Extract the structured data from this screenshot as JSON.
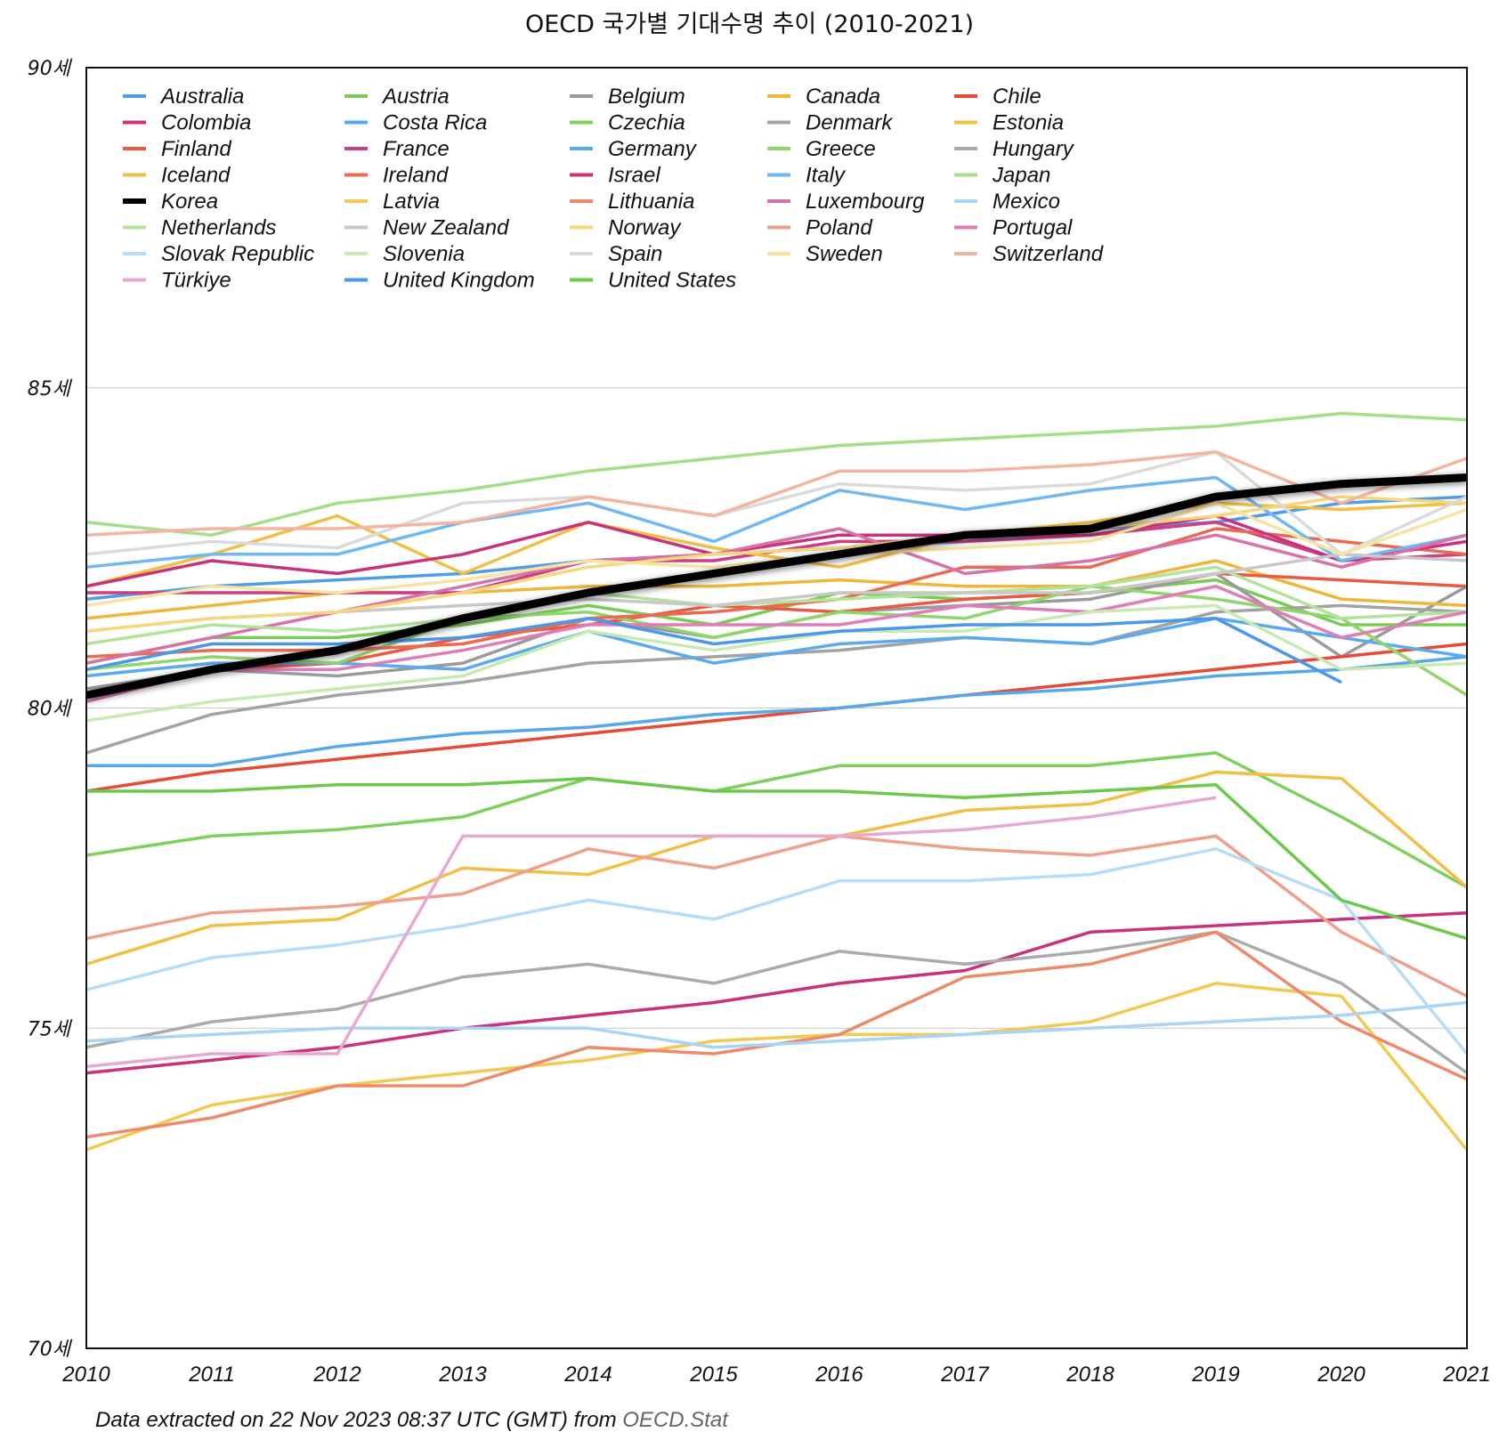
{
  "chart_data": {
    "type": "line",
    "title": "OECD 국가별 기대수명 추이 (2010-2021)",
    "xlabel": "",
    "ylabel": "",
    "ylim": [
      70,
      90
    ],
    "y_ticks": [
      {
        "value": 70,
        "label": "70세"
      },
      {
        "value": 75,
        "label": "75세"
      },
      {
        "value": 80,
        "label": "80세"
      },
      {
        "value": 85,
        "label": "85세"
      },
      {
        "value": 90,
        "label": "90세"
      }
    ],
    "x": [
      "2010",
      "2011",
      "2012",
      "2013",
      "2014",
      "2015",
      "2016",
      "2017",
      "2018",
      "2019",
      "2020",
      "2021"
    ],
    "grid": true,
    "legend_position": "top-left",
    "series": [
      {
        "name": "Australia",
        "color": "#4e9de8",
        "values": [
          81.7,
          81.9,
          82.0,
          82.1,
          82.3,
          82.4,
          82.5,
          82.6,
          82.8,
          82.9,
          83.2,
          83.3
        ]
      },
      {
        "name": "Austria",
        "color": "#79cb55",
        "values": [
          80.7,
          81.1,
          81.1,
          81.3,
          81.6,
          81.3,
          81.8,
          81.7,
          81.8,
          82.0,
          81.3,
          81.3
        ]
      },
      {
        "name": "Belgium",
        "color": "#9a9a9a",
        "values": [
          80.3,
          80.6,
          80.5,
          80.7,
          81.4,
          81.1,
          81.5,
          81.6,
          81.7,
          82.1,
          80.8,
          81.9
        ]
      },
      {
        "name": "Canada",
        "color": "#efb63a",
        "values": [
          81.4,
          81.6,
          81.8,
          81.8,
          81.9,
          81.9,
          82.0,
          81.9,
          81.9,
          82.3,
          81.7,
          81.6
        ]
      },
      {
        "name": "Chile",
        "color": "#e54b35",
        "values": [
          78.7,
          79.0,
          79.2,
          79.4,
          79.6,
          79.8,
          80.0,
          80.2,
          80.4,
          80.6,
          80.8,
          81.0
        ]
      },
      {
        "name": "Colombia",
        "color": "#c9327a",
        "values": [
          74.3,
          74.5,
          74.7,
          75.0,
          75.2,
          75.4,
          75.7,
          75.9,
          76.5,
          76.6,
          76.7,
          76.8
        ]
      },
      {
        "name": "Costa Rica",
        "color": "#56a8ea",
        "values": [
          79.1,
          79.1,
          79.4,
          79.6,
          79.7,
          79.9,
          80.0,
          80.2,
          80.3,
          80.5,
          80.6,
          80.8
        ]
      },
      {
        "name": "Czechia",
        "color": "#7fcf5f",
        "values": [
          77.7,
          78.0,
          78.1,
          78.3,
          78.9,
          78.7,
          79.1,
          79.1,
          79.1,
          79.3,
          78.3,
          77.2
        ]
      },
      {
        "name": "Denmark",
        "color": "#a3a3a3",
        "values": [
          79.3,
          79.9,
          80.2,
          80.4,
          80.7,
          80.8,
          80.9,
          81.1,
          81.0,
          81.5,
          81.6,
          81.5
        ]
      },
      {
        "name": "Estonia",
        "color": "#f0bf45",
        "values": [
          76.0,
          76.6,
          76.7,
          77.5,
          77.4,
          78.0,
          78.0,
          78.4,
          78.5,
          79.0,
          78.9,
          77.2
        ]
      },
      {
        "name": "Finland",
        "color": "#ea5a40",
        "values": [
          80.2,
          80.6,
          80.7,
          81.1,
          81.3,
          81.6,
          81.5,
          81.7,
          81.8,
          82.1,
          82.0,
          81.9
        ]
      },
      {
        "name": "France",
        "color": "#cc3f83",
        "values": [
          81.8,
          81.8,
          81.8,
          81.8,
          82.3,
          82.3,
          82.6,
          82.6,
          82.7,
          82.9,
          82.3,
          82.4
        ]
      },
      {
        "name": "Germany",
        "color": "#5aaaf0",
        "values": [
          80.5,
          80.7,
          80.7,
          80.6,
          81.2,
          80.7,
          81.0,
          81.1,
          81.0,
          81.4,
          81.1,
          80.8
        ]
      },
      {
        "name": "Greece",
        "color": "#8fd66c",
        "values": [
          80.6,
          80.8,
          80.7,
          81.4,
          81.5,
          81.1,
          81.5,
          81.4,
          81.9,
          81.7,
          81.4,
          80.2
        ]
      },
      {
        "name": "Hungary",
        "color": "#ababab",
        "values": [
          74.7,
          75.1,
          75.3,
          75.8,
          76.0,
          75.7,
          76.2,
          76.0,
          76.2,
          76.5,
          75.7,
          74.3
        ]
      },
      {
        "name": "Iceland",
        "color": "#f0bf45",
        "values": [
          81.9,
          82.4,
          83.0,
          82.1,
          82.9,
          82.5,
          82.2,
          82.7,
          82.9,
          83.2,
          83.1,
          83.2
        ]
      },
      {
        "name": "Ireland",
        "color": "#ea6a50",
        "values": [
          80.8,
          80.9,
          80.9,
          81.0,
          81.4,
          81.5,
          81.7,
          82.2,
          82.2,
          82.8,
          82.6,
          82.4
        ]
      },
      {
        "name": "Israel",
        "color": "#c9327a",
        "values": [
          81.9,
          82.3,
          82.1,
          82.4,
          82.9,
          82.4,
          82.7,
          82.7,
          82.7,
          83.0,
          82.3,
          82.6
        ]
      },
      {
        "name": "Italy",
        "color": "#6fb8f2",
        "values": [
          82.2,
          82.4,
          82.4,
          82.9,
          83.2,
          82.6,
          83.4,
          83.1,
          83.4,
          83.6,
          82.3,
          82.7
        ]
      },
      {
        "name": "Japan",
        "color": "#a5de88",
        "values": [
          82.9,
          82.7,
          83.2,
          83.4,
          83.7,
          83.9,
          84.1,
          84.2,
          84.3,
          84.4,
          84.6,
          84.5
        ]
      },
      {
        "name": "Korea",
        "color": "#000000",
        "emphasis": true,
        "values": [
          80.2,
          80.6,
          80.9,
          81.4,
          81.8,
          82.1,
          82.4,
          82.7,
          82.8,
          83.3,
          83.5,
          83.6
        ]
      },
      {
        "name": "Latvia",
        "color": "#f2c952",
        "values": [
          73.1,
          73.8,
          74.1,
          74.3,
          74.5,
          74.8,
          74.9,
          74.9,
          75.1,
          75.7,
          75.5,
          73.1
        ]
      },
      {
        "name": "Lithuania",
        "color": "#ec8a6a",
        "values": [
          73.3,
          73.6,
          74.1,
          74.1,
          74.7,
          74.6,
          74.9,
          75.8,
          76.0,
          76.5,
          75.1,
          74.2
        ]
      },
      {
        "name": "Luxembourg",
        "color": "#d871a8",
        "values": [
          80.7,
          81.1,
          81.5,
          81.9,
          82.3,
          82.4,
          82.8,
          82.1,
          82.3,
          82.7,
          82.2,
          82.7
        ]
      },
      {
        "name": "Mexico",
        "color": "#a8d4f6",
        "values": [
          74.8,
          74.9,
          75.0,
          75.0,
          75.0,
          74.7,
          74.8,
          74.9,
          75.0,
          75.1,
          75.2,
          75.4
        ]
      },
      {
        "name": "Netherlands",
        "color": "#b2e39a",
        "values": [
          81.0,
          81.3,
          81.2,
          81.4,
          81.8,
          81.6,
          81.7,
          81.8,
          81.9,
          82.2,
          81.4,
          81.5
        ]
      },
      {
        "name": "New Zealand",
        "color": "#c8c8c8",
        "values": [
          81.2,
          81.4,
          81.5,
          81.6,
          81.7,
          81.6,
          81.8,
          81.8,
          81.8,
          82.1,
          82.4,
          82.3
        ]
      },
      {
        "name": "Norway",
        "color": "#f6d77c",
        "values": [
          81.2,
          81.4,
          81.5,
          81.8,
          82.2,
          82.4,
          82.5,
          82.7,
          82.8,
          83.0,
          83.3,
          83.2
        ]
      },
      {
        "name": "Poland",
        "color": "#eea08a",
        "values": [
          76.4,
          76.8,
          76.9,
          77.1,
          77.8,
          77.5,
          78.0,
          77.8,
          77.7,
          78.0,
          76.5,
          75.5
        ]
      },
      {
        "name": "Portugal",
        "color": "#e07cb8",
        "values": [
          80.1,
          80.6,
          80.6,
          80.9,
          81.3,
          81.3,
          81.3,
          81.6,
          81.5,
          81.9,
          81.1,
          81.5
        ]
      },
      {
        "name": "Slovak Republic",
        "color": "#b6dcf8",
        "values": [
          75.6,
          76.1,
          76.3,
          76.6,
          77.0,
          76.7,
          77.3,
          77.3,
          77.4,
          77.8,
          77.0,
          74.6
        ]
      },
      {
        "name": "Slovenia",
        "color": "#c6eab2",
        "values": [
          79.8,
          80.1,
          80.3,
          80.5,
          81.2,
          80.9,
          81.2,
          81.2,
          81.5,
          81.6,
          80.6,
          80.7
        ]
      },
      {
        "name": "Spain",
        "color": "#dadada",
        "values": [
          82.4,
          82.6,
          82.5,
          83.2,
          83.3,
          83.0,
          83.5,
          83.4,
          83.5,
          84.0,
          82.4,
          83.3
        ]
      },
      {
        "name": "Sweden",
        "color": "#f8e3a0",
        "values": [
          81.6,
          81.9,
          81.8,
          82.0,
          82.3,
          82.2,
          82.4,
          82.5,
          82.6,
          83.2,
          82.4,
          83.1
        ]
      },
      {
        "name": "Switzerland",
        "color": "#f4b4a2",
        "values": [
          82.7,
          82.8,
          82.8,
          82.9,
          83.3,
          83.0,
          83.7,
          83.7,
          83.8,
          84.0,
          83.2,
          83.9
        ]
      },
      {
        "name": "Türkiye",
        "color": "#e6a8d2",
        "values": [
          74.4,
          74.6,
          74.6,
          78.0,
          78.0,
          78.0,
          78.0,
          78.1,
          78.3,
          78.6,
          null,
          null
        ]
      },
      {
        "name": "United Kingdom",
        "color": "#4a98ea",
        "values": [
          80.6,
          81.0,
          81.0,
          81.1,
          81.4,
          81.0,
          81.2,
          81.3,
          81.3,
          81.4,
          80.4,
          null
        ]
      },
      {
        "name": "United States",
        "color": "#6ac84a",
        "values": [
          78.7,
          78.7,
          78.8,
          78.8,
          78.9,
          78.7,
          78.7,
          78.6,
          78.7,
          78.8,
          77.0,
          76.4
        ]
      }
    ]
  },
  "footer": {
    "text": "Data extracted on 22 Nov 2023 08:37 UTC (GMT) from ",
    "source": "OECD.Stat"
  }
}
